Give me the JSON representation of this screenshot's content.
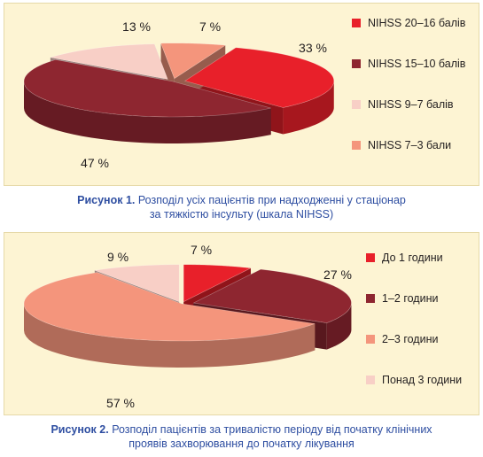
{
  "chart_data": [
    {
      "type": "pie",
      "caption_label": "Рисунок 1.",
      "caption_line1": "Розподіл усіх пацієнтів при надходженні у стаціонар",
      "caption_line2": "за тяжкістю інсульту (шкала NIHSS)",
      "categories": [
        "NIHSS 20–16 балів",
        "NIHSS 15–10 балів",
        "NIHSS 9–7 балів",
        "NIHSS 7–3 бали"
      ],
      "values": [
        33,
        47,
        13,
        7
      ],
      "labels": [
        "33 %",
        "47 %",
        "13 %",
        "7 %"
      ],
      "colors": [
        "#e8202a",
        "#8e2630",
        "#f8cfc6",
        "#f4957c"
      ],
      "legend_position": "right"
    },
    {
      "type": "pie",
      "caption_label": "Рисунок 2.",
      "caption_line1": "Розподіл пацієнтів за тривалістю періоду від початку клінічних",
      "caption_line2": "проявів захворювання до початку лікування",
      "categories": [
        "До 1 години",
        "1–2 години",
        "2–3 години",
        "Понад 3 години"
      ],
      "values": [
        7,
        27,
        57,
        9
      ],
      "labels": [
        "7 %",
        "27 %",
        "57 %",
        "9 %"
      ],
      "colors": [
        "#e8202a",
        "#8e2630",
        "#f4957c",
        "#f8cfc6"
      ],
      "legend_position": "right"
    }
  ]
}
